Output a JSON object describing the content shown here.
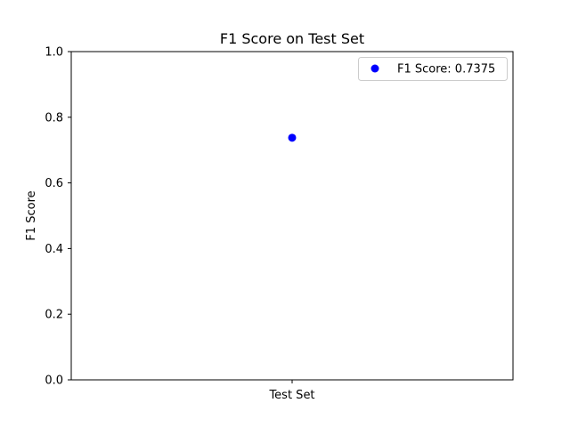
{
  "chart_data": {
    "type": "scatter",
    "title": "F1 Score on Test Set",
    "xlabel": "",
    "ylabel": "F1 Score",
    "categories": [
      "Test Set"
    ],
    "ylim": [
      0,
      1.0
    ],
    "yticks": [
      0.0,
      0.2,
      0.4,
      0.6,
      0.8,
      1.0
    ],
    "ytick_labels": [
      "0.0",
      "0.2",
      "0.4",
      "0.6",
      "0.8",
      "1.0"
    ],
    "grid": false,
    "legend_position": "top-right",
    "series": [
      {
        "name": "F1 Score: 0.7375",
        "x": [
          "Test Set"
        ],
        "values": [
          0.7375
        ],
        "color": "#0000ff"
      }
    ]
  }
}
